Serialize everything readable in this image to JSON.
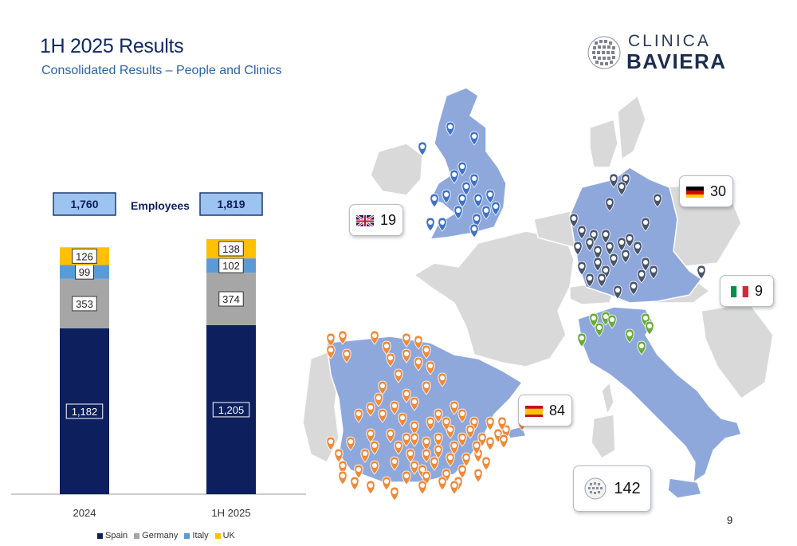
{
  "header": {
    "title": "1H 2025 Results",
    "subtitle": "Consolidated Results – People and Clinics"
  },
  "logo": {
    "line1": "CLINICA",
    "line2": "BAVIERA"
  },
  "page_number": "9",
  "chart_data": {
    "type": "bar",
    "stacked": true,
    "title": "Employees",
    "categories": [
      "2024",
      "1H 2025"
    ],
    "totals": [
      "1,760",
      "1,819"
    ],
    "series": [
      {
        "name": "Spain",
        "color": "#0d1f5c",
        "values": [
          1182,
          1205
        ],
        "labels": [
          "1,182",
          "1,205"
        ]
      },
      {
        "name": "Germany",
        "color": "#a6a6a6",
        "values": [
          353,
          374
        ],
        "labels": [
          "353",
          "374"
        ]
      },
      {
        "name": "Italy",
        "color": "#5b9bd5",
        "values": [
          99,
          102
        ],
        "labels": [
          "99",
          "102"
        ]
      },
      {
        "name": "UK",
        "color": "#ffc000",
        "values": [
          126,
          138
        ],
        "labels": [
          "126",
          "138"
        ]
      }
    ],
    "ylim": [
      0,
      1900
    ],
    "grid": false,
    "legend": "bottom"
  },
  "map": {
    "badges": [
      {
        "id": "uk",
        "value": "19",
        "flag": "uk-flag"
      },
      {
        "id": "germany",
        "value": "30",
        "flag": "germany-flag"
      },
      {
        "id": "italy",
        "value": "9",
        "flag": "italy-flag"
      },
      {
        "id": "spain",
        "value": "84",
        "flag": "spain-flag"
      },
      {
        "id": "total",
        "value": "142",
        "flag": "clinica-baviera-globe-icon"
      }
    ],
    "marker_colors": {
      "uk": "#3f73c9",
      "germany": "#4a5568",
      "italy": "#6aaa3a",
      "spain": "#ef8a3a"
    }
  }
}
